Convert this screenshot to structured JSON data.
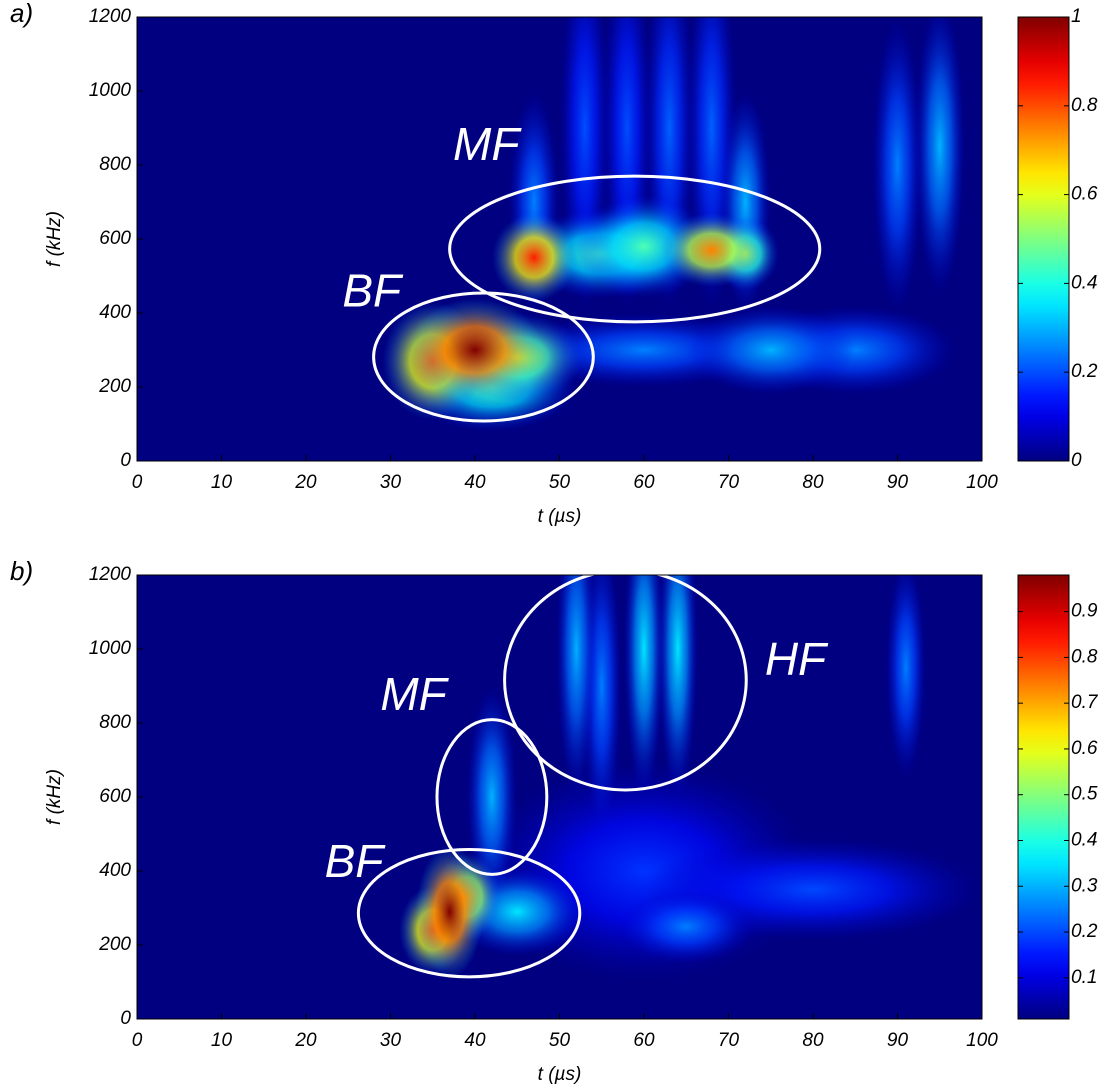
{
  "chart_data": [
    {
      "type": "heatmap",
      "panel_label": "a)",
      "xlabel": "t (µs)",
      "ylabel": "f (kHz)",
      "xlim": [
        0,
        100
      ],
      "xticks": [
        0,
        10,
        20,
        30,
        40,
        50,
        60,
        70,
        80,
        90,
        100
      ],
      "ylim": [
        0,
        1200
      ],
      "yticks": [
        0,
        200,
        400,
        600,
        800,
        1000,
        1200
      ],
      "colormap": "jet",
      "clim": [
        0,
        1
      ],
      "cticks": [
        0,
        0.2,
        0.4,
        0.6,
        0.8,
        1
      ],
      "hotspots": [
        {
          "t": 60,
          "f": 300,
          "value": 0.25,
          "dt": 8,
          "df": 50
        },
        {
          "t": 85,
          "f": 300,
          "value": 0.25,
          "dt": 6,
          "df": 60
        },
        {
          "t": 75,
          "f": 300,
          "value": 0.3,
          "dt": 5,
          "df": 60
        },
        {
          "t": 95,
          "f": 850,
          "value": 0.3,
          "dt": 1.5,
          "df": 200
        },
        {
          "t": 90,
          "f": 800,
          "value": 0.25,
          "dt": 1.5,
          "df": 200
        },
        {
          "t": 63,
          "f": 900,
          "value": 0.22,
          "dt": 1.5,
          "df": 250
        },
        {
          "t": 68,
          "f": 900,
          "value": 0.22,
          "dt": 1.5,
          "df": 250
        },
        {
          "t": 53,
          "f": 900,
          "value": 0.2,
          "dt": 1.5,
          "df": 250
        },
        {
          "t": 58,
          "f": 900,
          "value": 0.2,
          "dt": 1.5,
          "df": 250
        },
        {
          "t": 47,
          "f": 700,
          "value": 0.25,
          "dt": 1.5,
          "df": 150
        },
        {
          "t": 72,
          "f": 700,
          "value": 0.3,
          "dt": 1.5,
          "df": 150
        },
        {
          "t": 42,
          "f": 200,
          "value": 0.45,
          "dt": 5,
          "df": 60
        },
        {
          "t": 55,
          "f": 560,
          "value": 0.45,
          "dt": 5,
          "df": 60
        },
        {
          "t": 60,
          "f": 580,
          "value": 0.45,
          "dt": 4,
          "df": 70
        },
        {
          "t": 72,
          "f": 560,
          "value": 0.55,
          "dt": 2,
          "df": 50
        },
        {
          "t": 45,
          "f": 280,
          "value": 0.6,
          "dt": 4,
          "df": 60
        },
        {
          "t": 68,
          "f": 570,
          "value": 0.75,
          "dt": 3,
          "df": 50
        },
        {
          "t": 35,
          "f": 270,
          "value": 0.8,
          "dt": 3,
          "df": 80
        },
        {
          "t": 47,
          "f": 550,
          "value": 0.85,
          "dt": 2.5,
          "df": 60
        },
        {
          "t": 40,
          "f": 300,
          "value": 1,
          "dt": 4,
          "df": 70
        }
      ],
      "annotations": [
        {
          "text": "BF",
          "t": 41,
          "f": 281,
          "dt": 13,
          "df": 173,
          "text_t": 24.3,
          "text_f": 450
        },
        {
          "text": "MF",
          "t": 58.9,
          "f": 573,
          "dt": 21.9,
          "df": 197,
          "text_t": 37.4,
          "text_f": 846
        }
      ]
    },
    {
      "type": "heatmap",
      "panel_label": "b)",
      "xlabel": "t (µs)",
      "ylabel": "f (kHz)",
      "xlim": [
        0,
        100
      ],
      "xticks": [
        0,
        10,
        20,
        30,
        40,
        50,
        60,
        70,
        80,
        90,
        100
      ],
      "ylim": [
        0,
        1200
      ],
      "yticks": [
        0,
        200,
        400,
        600,
        800,
        1000,
        1200
      ],
      "colormap": "jet",
      "clim": [
        0.01,
        0.98
      ],
      "cticks": [
        0.1,
        0.2,
        0.3,
        0.4,
        0.5,
        0.6,
        0.7,
        0.8,
        0.9
      ],
      "hotspots": [
        {
          "t": 60,
          "f": 400,
          "value": 0.18,
          "dt": 10,
          "df": 150
        },
        {
          "t": 80,
          "f": 350,
          "value": 0.2,
          "dt": 10,
          "df": 70
        },
        {
          "t": 65,
          "f": 250,
          "value": 0.25,
          "dt": 4,
          "df": 50
        },
        {
          "t": 55,
          "f": 900,
          "value": 0.25,
          "dt": 1.2,
          "df": 200
        },
        {
          "t": 91,
          "f": 950,
          "value": 0.25,
          "dt": 1.2,
          "df": 150
        },
        {
          "t": 52,
          "f": 1000,
          "value": 0.3,
          "dt": 1.2,
          "df": 200
        },
        {
          "t": 60,
          "f": 1000,
          "value": 0.35,
          "dt": 1.2,
          "df": 200
        },
        {
          "t": 64,
          "f": 1000,
          "value": 0.35,
          "dt": 1.2,
          "df": 200
        },
        {
          "t": 42,
          "f": 600,
          "value": 0.3,
          "dt": 1.5,
          "df": 150
        },
        {
          "t": 45,
          "f": 290,
          "value": 0.35,
          "dt": 4,
          "df": 60
        },
        {
          "t": 39,
          "f": 330,
          "value": 0.7,
          "dt": 2,
          "df": 60
        },
        {
          "t": 35,
          "f": 240,
          "value": 0.8,
          "dt": 2,
          "df": 60
        },
        {
          "t": 37,
          "f": 290,
          "value": 0.98,
          "dt": 2,
          "df": 90
        }
      ],
      "annotations": [
        {
          "text": "BF",
          "t": 39.3,
          "f": 286,
          "dt": 13.1,
          "df": 172,
          "text_t": 22.2,
          "text_f": 416
        },
        {
          "text": "MF",
          "t": 42,
          "f": 600,
          "dt": 6.5,
          "df": 209,
          "text_t": 28.8,
          "text_f": 868
        },
        {
          "text": "HF",
          "t": 57.8,
          "f": 916,
          "dt": 14.3,
          "df": 297,
          "text_t": 74.3,
          "text_f": 962
        }
      ]
    }
  ]
}
